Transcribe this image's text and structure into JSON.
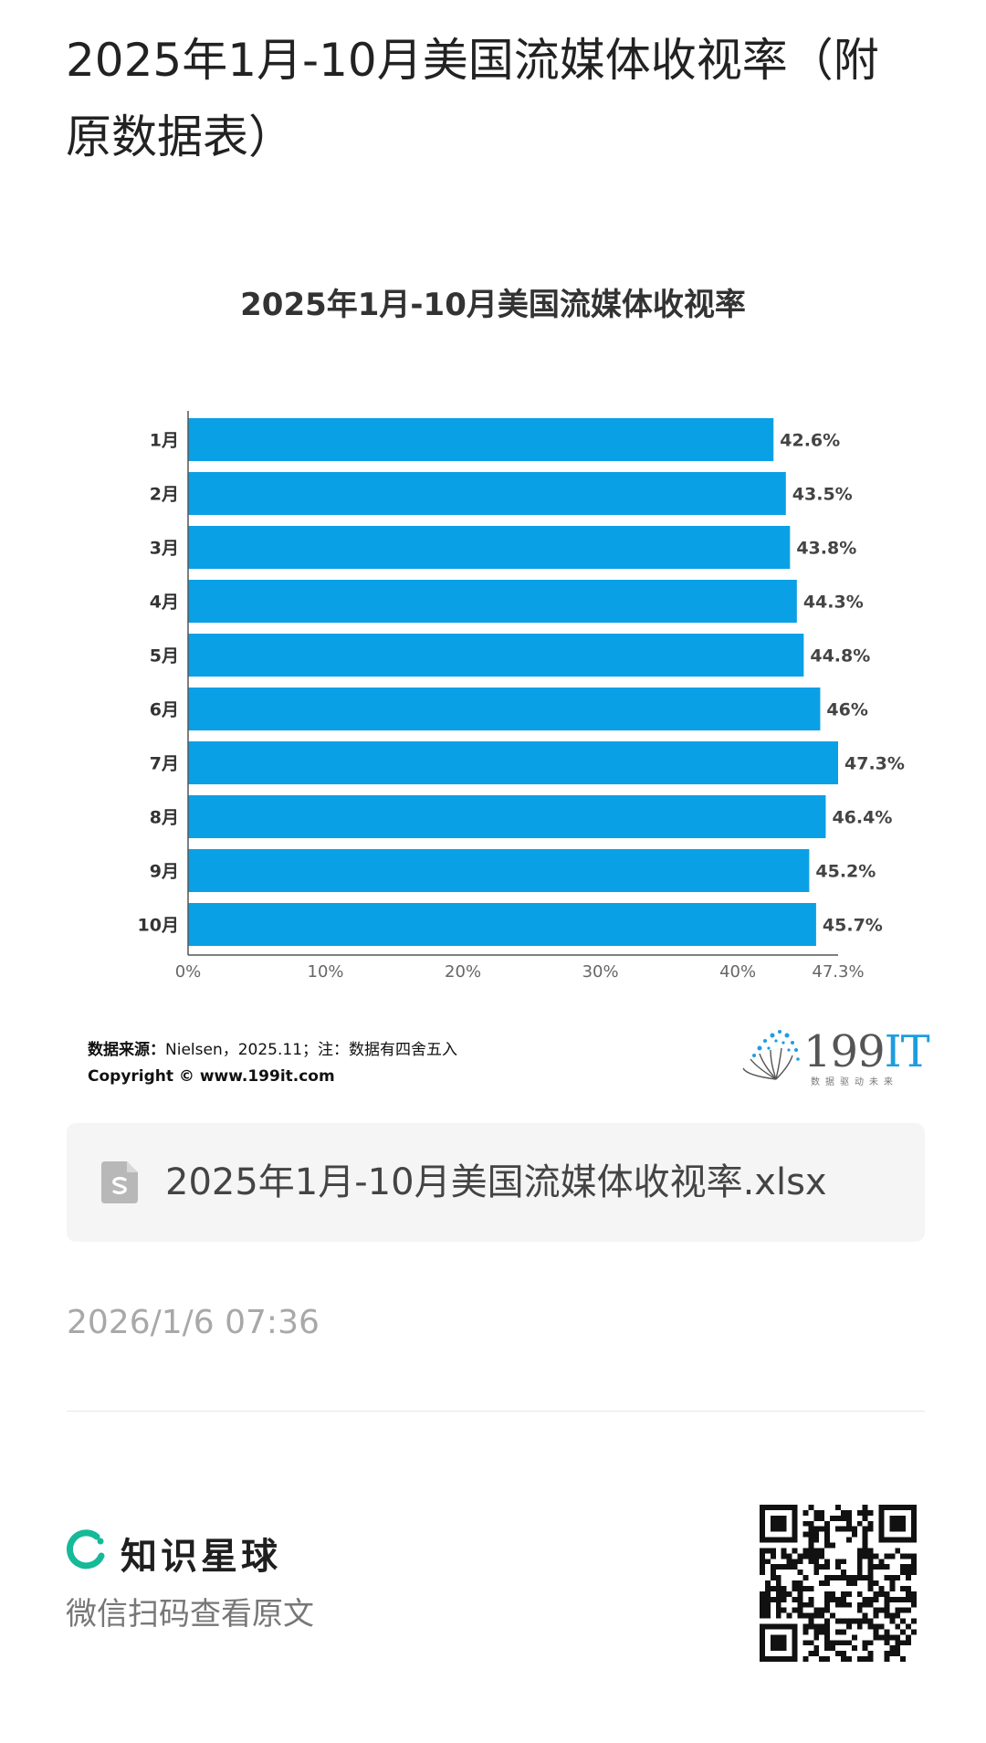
{
  "post": {
    "title": "2025年1月-10月美国流媒体收视率（附原数据表）"
  },
  "chart_data": {
    "type": "bar",
    "orientation": "horizontal",
    "title": "2025年1月-10月美国流媒体收视率",
    "categories": [
      "1月",
      "2月",
      "3月",
      "4月",
      "5月",
      "6月",
      "7月",
      "8月",
      "9月",
      "10月"
    ],
    "values": [
      42.6,
      43.5,
      43.8,
      44.3,
      44.8,
      46,
      47.3,
      46.4,
      45.2,
      45.7
    ],
    "value_labels": [
      "42.6%",
      "43.5%",
      "43.8%",
      "44.3%",
      "44.8%",
      "46%",
      "47.3%",
      "46.4%",
      "45.2%",
      "45.7%"
    ],
    "xticks": [
      "0%",
      "10%",
      "20%",
      "30%",
      "40%",
      "47.3%"
    ],
    "xtick_values": [
      0,
      10,
      20,
      30,
      40,
      47.3
    ],
    "xlim": [
      0,
      47.3
    ],
    "bar_color": "#0aa0e6",
    "grid": false,
    "legend": "none"
  },
  "source": {
    "label": "数据来源：",
    "text": "Nielsen，2025.11；注：数据有四舍五入",
    "copyright": "Copyright ©  www.199it.com"
  },
  "logo": {
    "number": "199",
    "suffix": "IT",
    "slogan": "数据驱动未来",
    "accent_color": "#1e9de0"
  },
  "attachment": {
    "icon": "spreadsheet-file-icon",
    "file_name": "2025年1月-10月美国流媒体收视率.xlsx"
  },
  "timestamp": "2026/1/6 07:36",
  "footer": {
    "brand_icon": "zsxq-ring-logo",
    "brand_name": "知识星球",
    "subtitle": "微信扫码查看原文",
    "brand_color": "#16b998",
    "qr_icon": "qr-code-icon"
  }
}
